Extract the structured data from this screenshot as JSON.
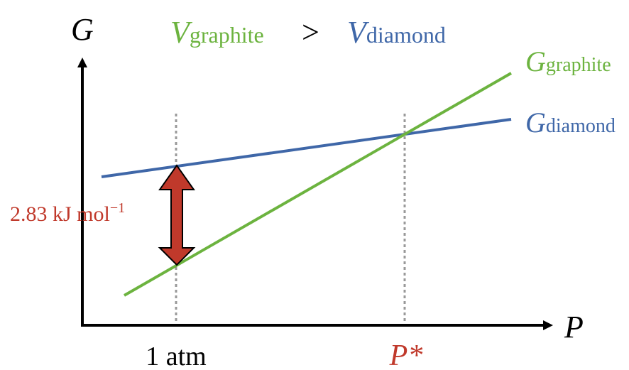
{
  "colors": {
    "graphite": "#6cb33f",
    "diamond": "#3f67a8",
    "arrow": "#c0392b",
    "axis": "#000000",
    "guide": "#999999",
    "pstar": "#c0392b"
  },
  "axes": {
    "y_symbol": "G",
    "x_symbol": "P"
  },
  "header": {
    "v_left_symbol": "V",
    "v_left_sub": "graphite",
    "relation": ">",
    "v_right_symbol": "V",
    "v_right_sub": "diamond"
  },
  "lines": {
    "graphite": {
      "symbol": "G",
      "sub": "graphite"
    },
    "diamond": {
      "symbol": "G",
      "sub": "diamond"
    }
  },
  "gap_label": {
    "value": "2.83 kJ mol",
    "sup": "−1"
  },
  "x_ticks": {
    "atm": "1 atm",
    "pstar": "P*"
  }
}
